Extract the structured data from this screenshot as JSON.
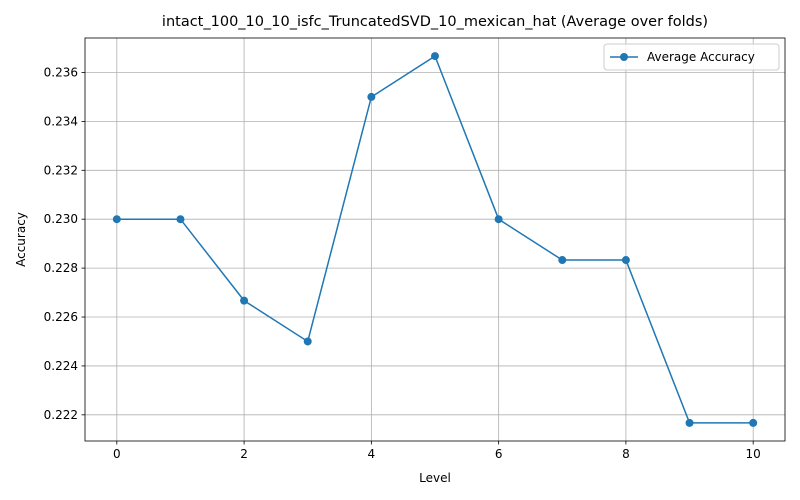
{
  "chart_data": {
    "type": "line",
    "title": "intact_100_10_10_isfc_TruncatedSVD_10_mexican_hat (Average over folds)",
    "xlabel": "Level",
    "ylabel": "Accuracy",
    "xlim": [
      -0.5,
      10.5
    ],
    "ylim": [
      0.22093,
      0.23741
    ],
    "x_ticks": [
      0,
      2,
      4,
      6,
      8,
      10
    ],
    "y_ticks": [
      0.222,
      0.224,
      0.226,
      0.228,
      0.23,
      0.232,
      0.234,
      0.236
    ],
    "grid": true,
    "legend_position": "top-right",
    "series": [
      {
        "name": "Average Accuracy",
        "color": "#1f77b4",
        "marker": "circle",
        "x": [
          0,
          1,
          2,
          3,
          4,
          5,
          6,
          7,
          8,
          9,
          10
        ],
        "y": [
          0.23,
          0.23,
          0.22667,
          0.225,
          0.235,
          0.23667,
          0.23,
          0.22833,
          0.22833,
          0.22167,
          0.22167
        ]
      }
    ]
  }
}
